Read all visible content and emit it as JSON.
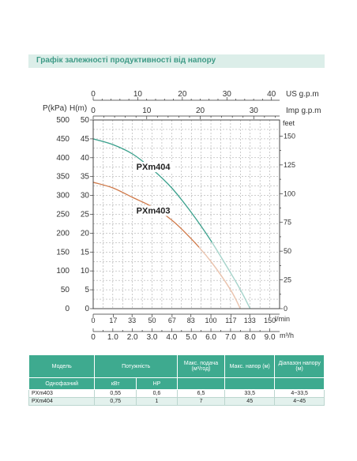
{
  "header": {
    "title": "Графік залежності продуктивності від напору"
  },
  "chart_data": {
    "type": "line",
    "left_axis_labels": {
      "kpa": "P(kPa)",
      "m": "H(m)"
    },
    "right_axis_label": "feet",
    "top_axes": [
      {
        "label": "US g.p.m",
        "ticks": [
          "0",
          "10",
          "20",
          "30",
          "40"
        ]
      },
      {
        "label": "Imp g.p.m",
        "ticks": [
          "0",
          "10",
          "20",
          "30"
        ]
      }
    ],
    "bottom_axes": [
      {
        "label": "l/min",
        "ticks": [
          "0",
          "17",
          "33",
          "50",
          "67",
          "83",
          "100",
          "117",
          "133",
          "150"
        ]
      },
      {
        "label": "m³/h",
        "ticks": [
          "0",
          "1.0",
          "2.0",
          "3.0",
          "4.0",
          "5.0",
          "6.0",
          "7.0",
          "8.0",
          "9.0"
        ]
      }
    ],
    "y_ticks_kpa": [
      "0",
      "50",
      "100",
      "150",
      "200",
      "250",
      "300",
      "350",
      "400",
      "450",
      "500"
    ],
    "y_ticks_m": [
      "0",
      "5",
      "10",
      "15",
      "20",
      "25",
      "30",
      "35",
      "40",
      "45",
      "50"
    ],
    "y_ticks_feet": [
      "0",
      "25",
      "50",
      "75",
      "100",
      "125",
      "150"
    ],
    "xlim": [
      0,
      9.5
    ],
    "ylim": [
      0,
      50
    ],
    "grid": true,
    "series": [
      {
        "name": "PXm404",
        "color": "#3aa08c",
        "x": [
          0,
          1,
          2,
          3,
          4,
          5,
          6,
          7,
          7.5,
          8
        ],
        "y": [
          45,
          43.5,
          41,
          37,
          32,
          25.5,
          18,
          9.5,
          5,
          0
        ]
      },
      {
        "name": "PXm403",
        "color": "#d07a4a",
        "x": [
          0,
          1,
          2,
          3,
          4,
          5,
          6,
          7,
          7.5
        ],
        "y": [
          33.5,
          32,
          29.5,
          27,
          23.5,
          18.5,
          12.5,
          5,
          0
        ]
      }
    ]
  },
  "table": {
    "head_row1": [
      "Модель",
      "Потужність",
      "Макс. подача (м³/год)",
      "Макс. напор (м)",
      "Діапазон напору (м)"
    ],
    "head_row2": [
      "Однофазний",
      "кВт",
      "HP"
    ],
    "rows": [
      [
        "PXm403",
        "0,55",
        "0,6",
        "6,5",
        "33,5",
        "4~33,5"
      ],
      [
        "PXm404",
        "0,75",
        "1",
        "7",
        "45",
        "4~45"
      ]
    ]
  }
}
